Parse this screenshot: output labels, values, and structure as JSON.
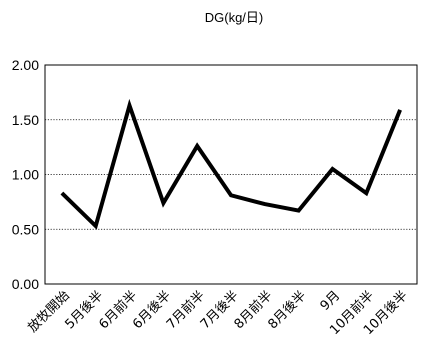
{
  "chart_data": {
    "type": "line",
    "title": "DG(kg/日)",
    "categories": [
      "放牧開始",
      "5月後半",
      "6月前半",
      "6月後半",
      "7月前半",
      "7月後半",
      "8月前半",
      "8月後半",
      "9月",
      "10月前半",
      "10月後半"
    ],
    "series": [
      {
        "values": [
          0.83,
          0.53,
          1.63,
          0.74,
          1.26,
          0.81,
          0.73,
          0.67,
          1.05,
          0.83,
          1.59
        ]
      }
    ],
    "y_ticks": [
      "0.00",
      "0.50",
      "1.00",
      "1.50",
      "2.00"
    ],
    "ylim": [
      0,
      2.0
    ],
    "xlabel": "",
    "ylabel": "",
    "grid": true,
    "line_color": "#000000"
  }
}
